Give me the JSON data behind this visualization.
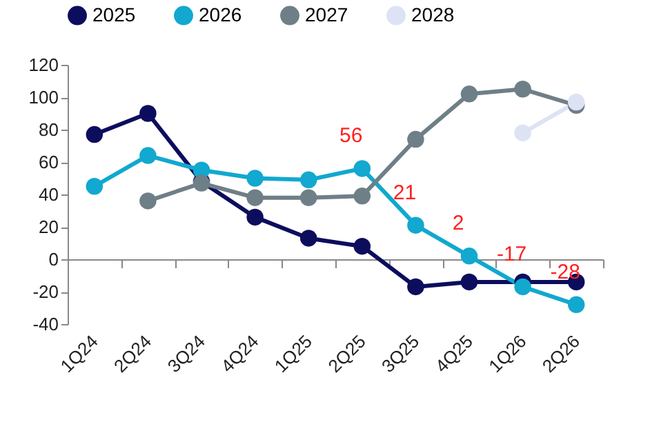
{
  "chart_data": {
    "type": "line",
    "categories": [
      "1Q24",
      "2Q24",
      "3Q24",
      "4Q24",
      "1Q25",
      "2Q25",
      "3Q25",
      "4Q25",
      "1Q26",
      "2Q26"
    ],
    "series": [
      {
        "name": "2025",
        "color": "#0d0d5e",
        "values": [
          77,
          90,
          48,
          26,
          13,
          8,
          -17,
          -14,
          -14,
          -14
        ]
      },
      {
        "name": "2026",
        "color": "#12a8cf",
        "values": [
          45,
          64,
          55,
          50,
          49,
          56,
          21,
          2,
          -17,
          -28
        ],
        "value_labels": [
          null,
          null,
          null,
          null,
          null,
          "56",
          "21",
          "2",
          "-17",
          "-28"
        ]
      },
      {
        "name": "2027",
        "color": "#6e7f87",
        "values": [
          null,
          36,
          47,
          38,
          38,
          39,
          74,
          102,
          105,
          95
        ]
      },
      {
        "name": "2028",
        "color": "#dde3f5",
        "values": [
          null,
          null,
          null,
          null,
          null,
          null,
          null,
          null,
          78,
          97
        ]
      }
    ],
    "ylim": [
      -40,
      120
    ],
    "yticks": [
      -40,
      -20,
      0,
      20,
      40,
      60,
      80,
      100,
      120
    ],
    "legend": "top",
    "marker": "circle",
    "line_style": "solid"
  }
}
